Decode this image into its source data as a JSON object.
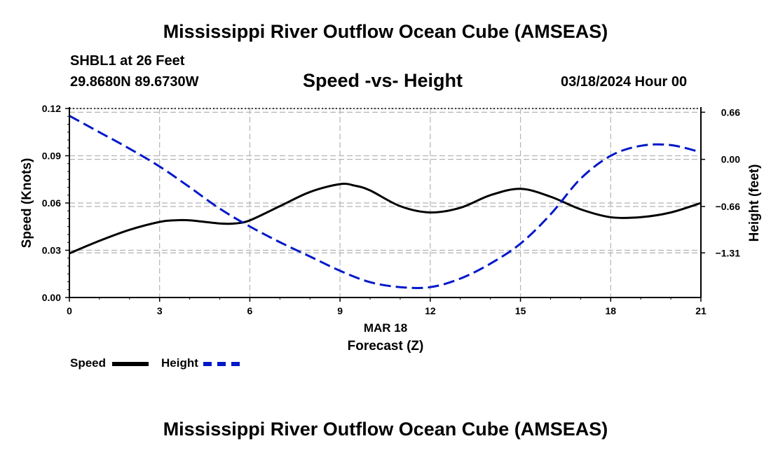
{
  "header": {
    "title": "Mississippi River Outflow Ocean Cube (AMSEAS)",
    "station": "SHBL1 at 26 Feet",
    "coordinates": "29.8680N  89.6730W",
    "subtitle": "Speed -vs- Height",
    "datetime": "03/18/2024 Hour 00"
  },
  "footer": {
    "title": "Mississippi River Outflow Ocean Cube (AMSEAS)"
  },
  "legend": {
    "speed_label": "Speed",
    "height_label": "Height"
  },
  "colors": {
    "speed": "#000000",
    "height": "#0018c8",
    "grid": "#b4b4b4"
  },
  "chart_data": {
    "type": "line",
    "title": "Speed -vs- Height",
    "xlabel": "Forecast (Z)",
    "xdate_label": "MAR 18",
    "ylabel": "Speed (Knots)",
    "y2label": "Height (feet)",
    "xlim": [
      0,
      21
    ],
    "ylim": [
      0,
      0.12
    ],
    "y2lim": [
      -1.935,
      0.7124
    ],
    "x_ticks": [
      0,
      3,
      6,
      9,
      12,
      15,
      18,
      21
    ],
    "x_tick_labels": [
      "0",
      "3",
      "6",
      "9",
      "12",
      "15",
      "18",
      "21"
    ],
    "y_ticks": [
      0,
      0.03,
      0.06,
      0.09,
      0.12
    ],
    "y_tick_labels": [
      "0.00",
      "0.03",
      "0.06",
      "0.09",
      "0.12"
    ],
    "y2_ticks": [
      0.66,
      0.0,
      -0.66,
      -1.31
    ],
    "y2_tick_labels": [
      "0.66",
      "0.00",
      "−0.66",
      "−1.31"
    ],
    "grid": true,
    "legend_position": "bottom-left",
    "series": [
      {
        "name": "Speed",
        "axis": "left",
        "style": "solid",
        "x": [
          0,
          1,
          2,
          3,
          3.5,
          4,
          5,
          5.5,
          6,
          7,
          8,
          9,
          9.5,
          10,
          11,
          12,
          13,
          14,
          15,
          16,
          17,
          18,
          19,
          20,
          21
        ],
        "values": [
          0.028,
          0.036,
          0.043,
          0.048,
          0.049,
          0.049,
          0.047,
          0.047,
          0.049,
          0.058,
          0.067,
          0.072,
          0.071,
          0.068,
          0.058,
          0.054,
          0.057,
          0.065,
          0.069,
          0.064,
          0.056,
          0.051,
          0.051,
          0.054,
          0.06
        ]
      },
      {
        "name": "Height",
        "axis": "right",
        "style": "dashed",
        "x": [
          0,
          1,
          2,
          3,
          4,
          5,
          6,
          7,
          8,
          9,
          10,
          11,
          12,
          13,
          14,
          15,
          16,
          17,
          18,
          19,
          20,
          21
        ],
        "values": [
          0.61,
          0.38,
          0.15,
          -0.1,
          -0.39,
          -0.69,
          -0.94,
          -1.16,
          -1.36,
          -1.56,
          -1.72,
          -1.79,
          -1.79,
          -1.67,
          -1.46,
          -1.18,
          -0.77,
          -0.27,
          0.05,
          0.19,
          0.2,
          0.1
        ]
      }
    ]
  }
}
